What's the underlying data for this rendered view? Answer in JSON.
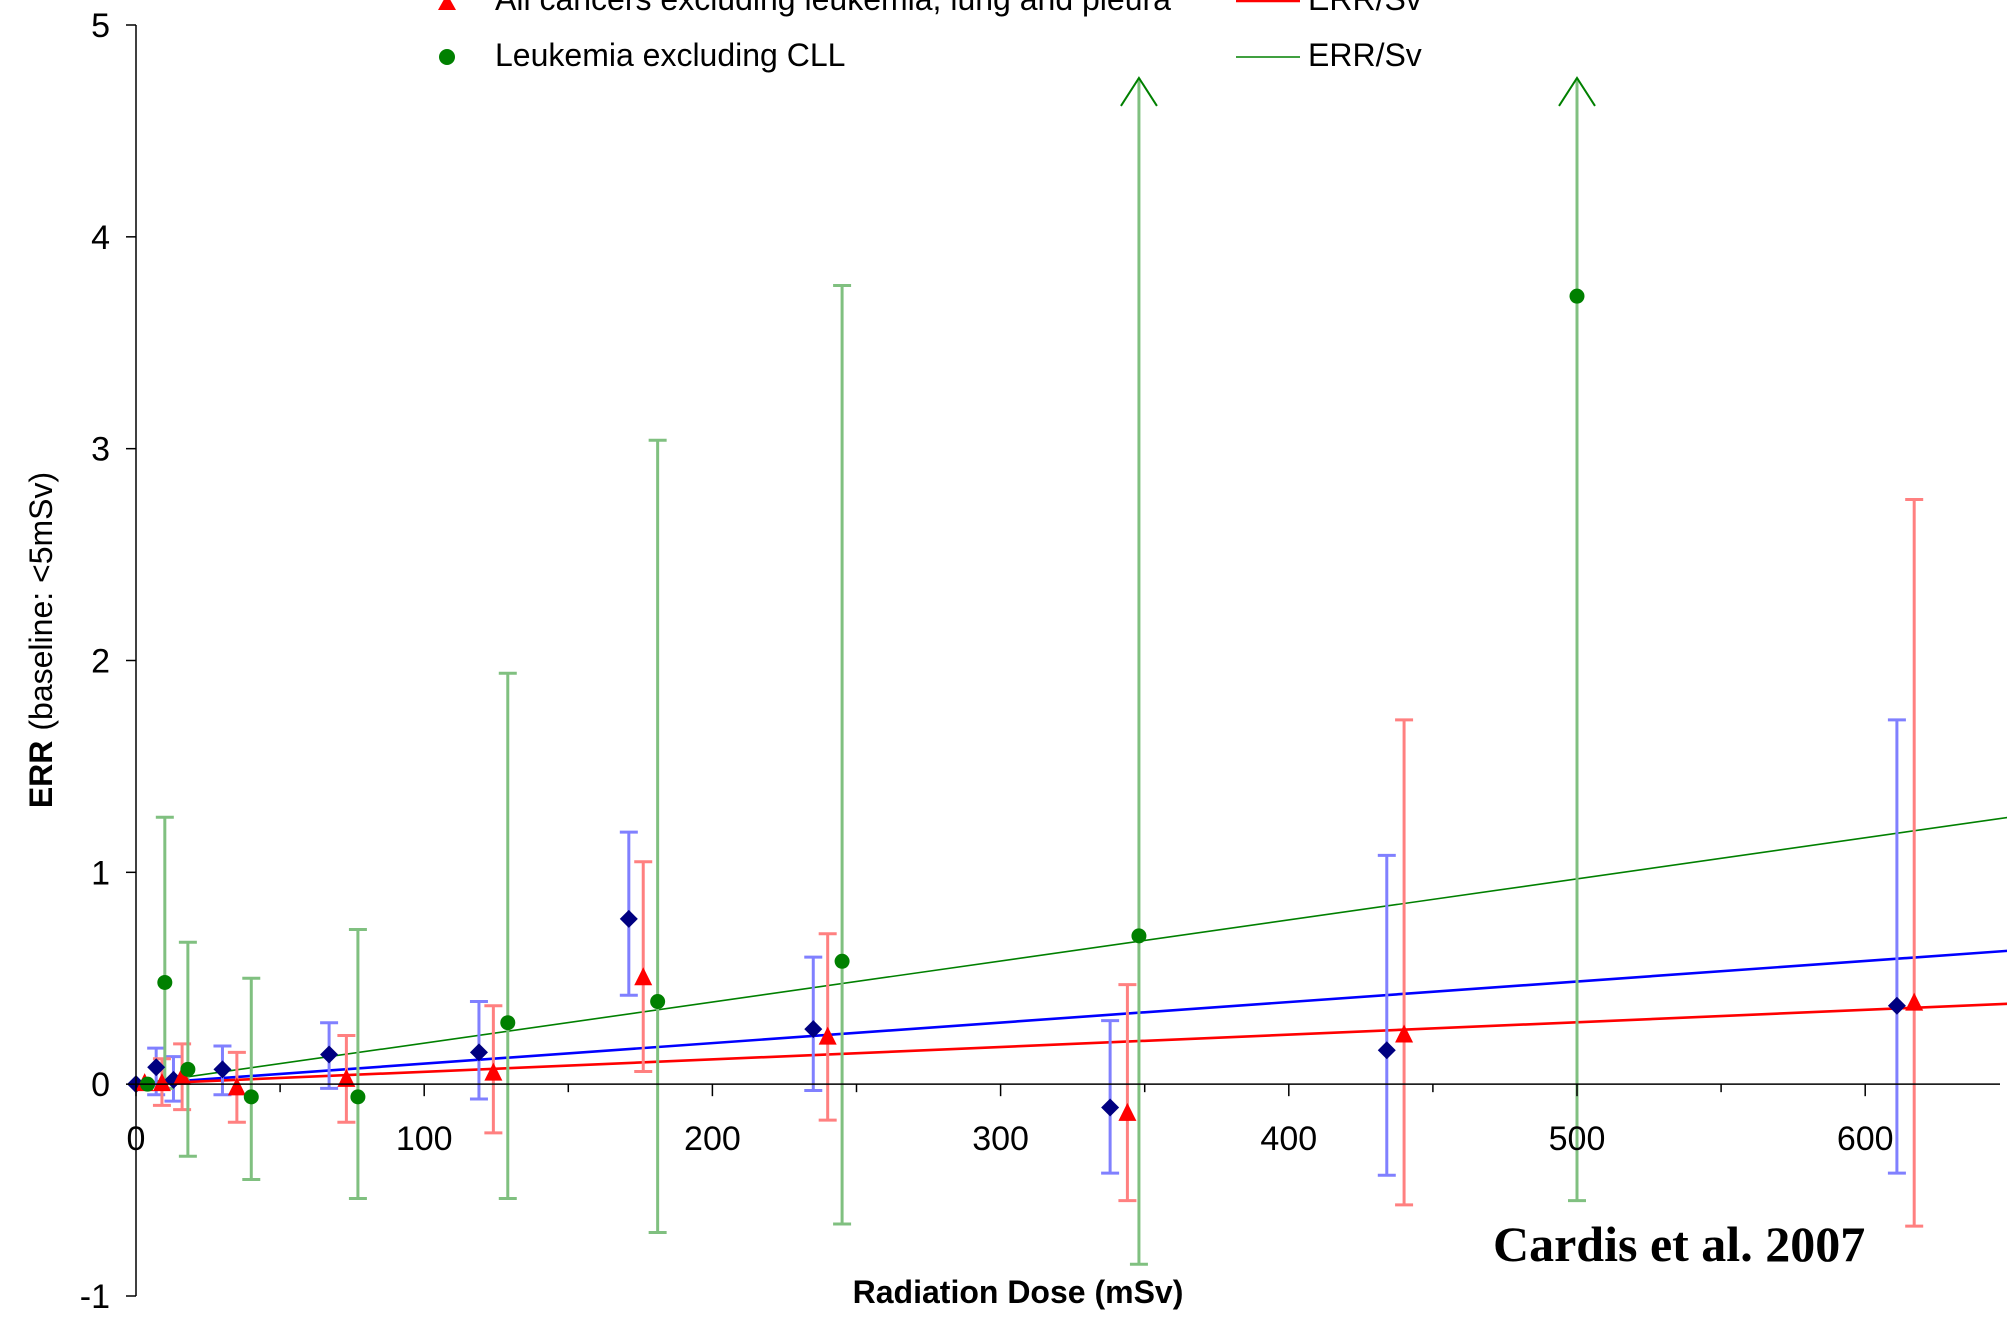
{
  "chart_data": {
    "type": "scatter",
    "xlabel": "Radiation Dose (mSv)",
    "ylabel_bold": "ERR",
    "ylabel_rest": "(baseline: <5mSv)",
    "xlim": [
      0,
      650
    ],
    "ylim": [
      -1,
      5
    ],
    "xticks": [
      0,
      100,
      200,
      300,
      400,
      500,
      600
    ],
    "yticks": [
      -1,
      0,
      1,
      2,
      3,
      4,
      5
    ],
    "annotation": "Cardis et al. 2007",
    "legend": {
      "placement": "top",
      "entries": [
        {
          "marker": "triangle",
          "color": "#ff0000",
          "label": "All cancers excluding leukemia, lung and pleura",
          "line_label": "ERR/Sv",
          "line_color": "#ff0000"
        },
        {
          "marker": "circle",
          "color": "#008000",
          "label": "Leukemia excluding CLL",
          "line_label": "ERR/Sv",
          "line_color": "#008000"
        }
      ]
    },
    "series": [
      {
        "marker": "diamond",
        "color": "#000080",
        "errcolor": "#8080ff",
        "points": [
          {
            "x": 0,
            "y": 0
          },
          {
            "x": 7,
            "y": 0.08,
            "lo": -0.05,
            "hi": 0.17
          },
          {
            "x": 13,
            "y": 0.02,
            "lo": -0.08,
            "hi": 0.13
          },
          {
            "x": 30,
            "y": 0.07,
            "lo": -0.05,
            "hi": 0.18
          },
          {
            "x": 67,
            "y": 0.14,
            "lo": -0.02,
            "hi": 0.29
          },
          {
            "x": 119,
            "y": 0.15,
            "lo": -0.07,
            "hi": 0.39
          },
          {
            "x": 171,
            "y": 0.78,
            "lo": 0.42,
            "hi": 1.19
          },
          {
            "x": 235,
            "y": 0.26,
            "lo": -0.03,
            "hi": 0.6
          },
          {
            "x": 338,
            "y": -0.11,
            "lo": -0.42,
            "hi": 0.3
          },
          {
            "x": 434,
            "y": 0.16,
            "lo": -0.43,
            "hi": 1.08
          },
          {
            "x": 611,
            "y": 0.37,
            "lo": -0.42,
            "hi": 1.72
          }
        ]
      },
      {
        "marker": "triangle",
        "color": "#ff0000",
        "errcolor": "#ff8080",
        "points": [
          {
            "x": 3,
            "y": 0
          },
          {
            "x": 9,
            "y": 0,
            "lo": -0.1,
            "hi": 0.12
          },
          {
            "x": 16,
            "y": 0.03,
            "lo": -0.12,
            "hi": 0.19
          },
          {
            "x": 35,
            "y": -0.02,
            "lo": -0.18,
            "hi": 0.15
          },
          {
            "x": 73,
            "y": 0.02,
            "lo": -0.18,
            "hi": 0.23
          },
          {
            "x": 124,
            "y": 0.05,
            "lo": -0.23,
            "hi": 0.37
          },
          {
            "x": 176,
            "y": 0.5,
            "lo": 0.06,
            "hi": 1.05
          },
          {
            "x": 240,
            "y": 0.22,
            "lo": -0.17,
            "hi": 0.71
          },
          {
            "x": 344,
            "y": -0.14,
            "lo": -0.55,
            "hi": 0.47
          },
          {
            "x": 440,
            "y": 0.23,
            "lo": -0.57,
            "hi": 1.72
          },
          {
            "x": 617,
            "y": 0.38,
            "lo": -0.67,
            "hi": 2.76
          }
        ]
      },
      {
        "marker": "circle",
        "color": "#008000",
        "errcolor": "#80c080",
        "points": [
          {
            "x": 4,
            "y": 0
          },
          {
            "x": 10,
            "y": 0.48,
            "lo": -0.02,
            "hi": 1.26
          },
          {
            "x": 18,
            "y": 0.07,
            "lo": -0.34,
            "hi": 0.67
          },
          {
            "x": 40,
            "y": -0.06,
            "lo": -0.45,
            "hi": 0.5
          },
          {
            "x": 77,
            "y": -0.06,
            "lo": -0.54,
            "hi": 0.73
          },
          {
            "x": 129,
            "y": 0.29,
            "lo": -0.54,
            "hi": 1.94
          },
          {
            "x": 181,
            "y": 0.39,
            "lo": -0.7,
            "hi": 3.04
          },
          {
            "x": 245,
            "y": 0.58,
            "lo": -0.66,
            "hi": 3.77
          },
          {
            "x": 348,
            "y": 0.7,
            "lo": -0.85,
            "hi": 4.75,
            "open_upper": true
          },
          {
            "x": 500,
            "y": 3.72,
            "lo": -0.55,
            "hi": 4.75,
            "open_upper": true
          }
        ]
      }
    ],
    "fits": [
      {
        "color": "#0000ff",
        "y_at_max": 0.63
      },
      {
        "color": "#ff0000",
        "y_at_max": 0.38
      },
      {
        "color": "#008000",
        "y_at_max": 1.26
      }
    ]
  }
}
